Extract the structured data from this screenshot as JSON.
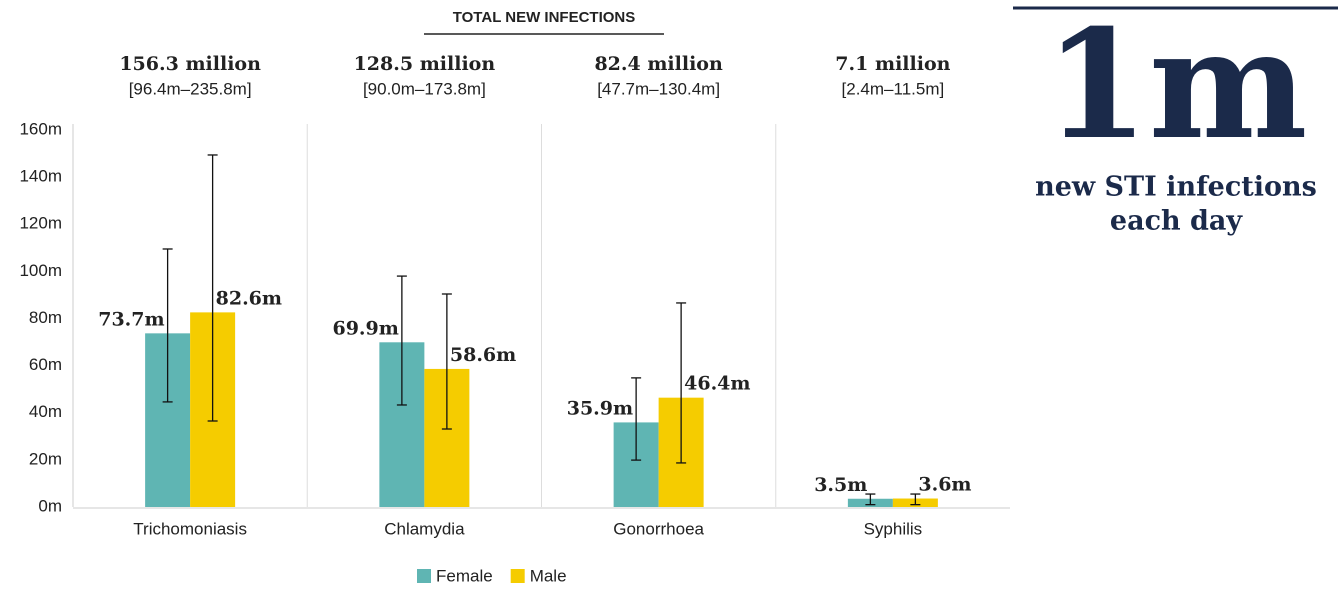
{
  "chart_data": {
    "type": "bar",
    "title": "TOTAL NEW INFECTIONS",
    "categories": [
      "Trichomoniasis",
      "Chlamydia",
      "Gonorrhoea",
      "Syphilis"
    ],
    "totals": [
      "156.3 million",
      "128.5 million",
      "82.4 million",
      "7.1 million"
    ],
    "total_ranges": [
      "[96.4m–235.8m]",
      "[90.0m–173.8m]",
      "[47.7m–130.4m]",
      "[2.4m–11.5m]"
    ],
    "series": [
      {
        "name": "Female",
        "color": "#5fb5b3",
        "values": [
          73.7,
          69.9,
          35.9,
          3.5
        ],
        "value_labels": [
          "73.7m",
          "69.9m",
          "35.9m",
          "3.5m"
        ],
        "error_low": [
          44.6,
          43.3,
          19.9,
          1.0
        ],
        "error_high": [
          109.5,
          98.0,
          54.8,
          5.5
        ]
      },
      {
        "name": "Male",
        "color": "#f5cc00",
        "values": [
          82.6,
          58.6,
          46.4,
          3.6
        ],
        "value_labels": [
          "82.6m",
          "58.6m",
          "46.4m",
          "3.6m"
        ],
        "error_low": [
          36.5,
          33.1,
          18.7,
          1.0
        ],
        "error_high": [
          149.4,
          90.4,
          86.6,
          5.5
        ]
      }
    ],
    "ylim": [
      0,
      160
    ],
    "yticks": [
      {
        "value": 0,
        "label": "0m"
      },
      {
        "value": 20,
        "label": "20m"
      },
      {
        "value": 40,
        "label": "40m"
      },
      {
        "value": 60,
        "label": "60m"
      },
      {
        "value": 80,
        "label": "80m"
      },
      {
        "value": 100,
        "label": "100m"
      },
      {
        "value": 120,
        "label": "120m"
      },
      {
        "value": 140,
        "label": "140m"
      },
      {
        "value": 160,
        "label": "160m"
      }
    ],
    "legend": "bottom"
  },
  "callout": {
    "number": "1m",
    "text_lines": [
      "new STI infections",
      "each day"
    ]
  }
}
